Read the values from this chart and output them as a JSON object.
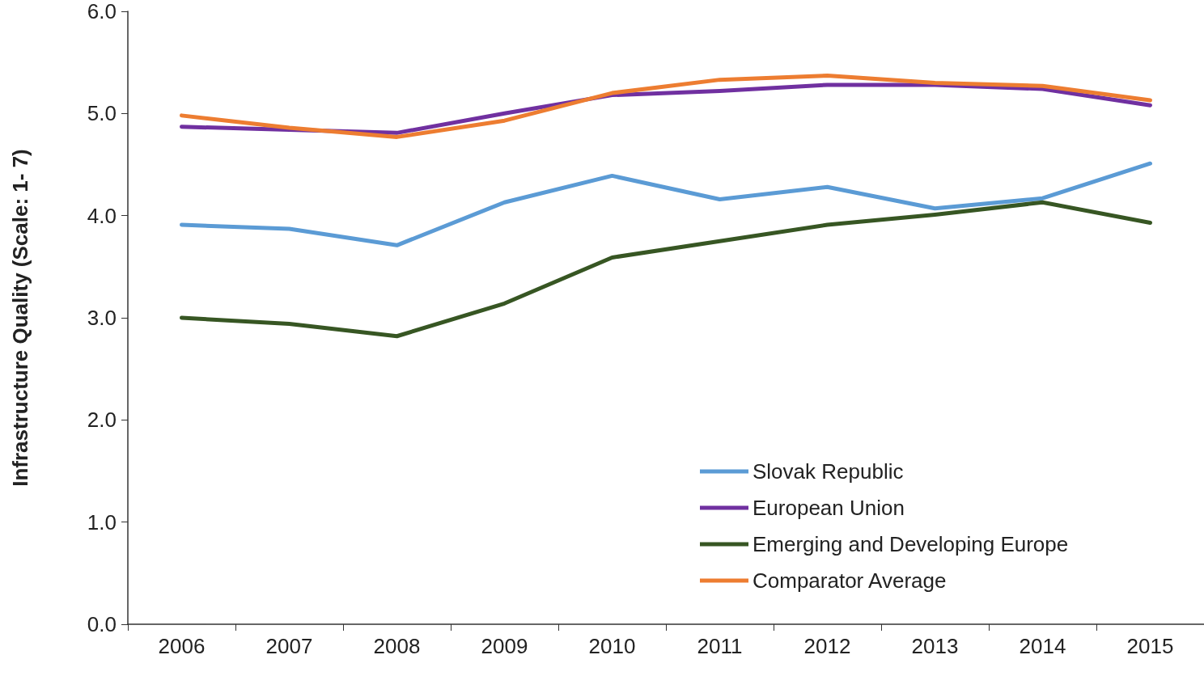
{
  "chart_data": {
    "type": "line",
    "ylabel": "Infrastructure Quality (Scale: 1- 7)",
    "categories": [
      "2006",
      "2007",
      "2008",
      "2009",
      "2010",
      "2011",
      "2012",
      "2013",
      "2014",
      "2015"
    ],
    "series": [
      {
        "name": "Slovak Republic",
        "color": "#5b9bd5",
        "values": [
          3.91,
          3.87,
          3.71,
          4.13,
          4.39,
          4.16,
          4.28,
          4.07,
          4.17,
          4.51
        ]
      },
      {
        "name": "European Union",
        "color": "#7030a0",
        "values": [
          4.87,
          4.84,
          4.81,
          5.0,
          5.18,
          5.22,
          5.28,
          5.28,
          5.24,
          5.08
        ]
      },
      {
        "name": "Emerging and Developing Europe",
        "color": "#375623",
        "values": [
          3.0,
          2.94,
          2.82,
          3.14,
          3.59,
          3.75,
          3.91,
          4.01,
          4.13,
          3.93
        ]
      },
      {
        "name": "Comparator Average",
        "color": "#ed7d31",
        "values": [
          4.98,
          4.86,
          4.77,
          4.93,
          5.2,
          5.33,
          5.37,
          5.3,
          5.27,
          5.13
        ]
      }
    ],
    "ylim": [
      0,
      6
    ],
    "yticks": [
      {
        "value": 0,
        "label": "0.0"
      },
      {
        "value": 1,
        "label": "1.0"
      },
      {
        "value": 2,
        "label": "2.0"
      },
      {
        "value": 3,
        "label": "3.0"
      },
      {
        "value": 4,
        "label": "4.0"
      },
      {
        "value": 5,
        "label": "5.0"
      },
      {
        "value": 6,
        "label": "6.0"
      }
    ],
    "grid": false,
    "legend": "bottom right",
    "marker": "none",
    "line_style": "solid"
  }
}
